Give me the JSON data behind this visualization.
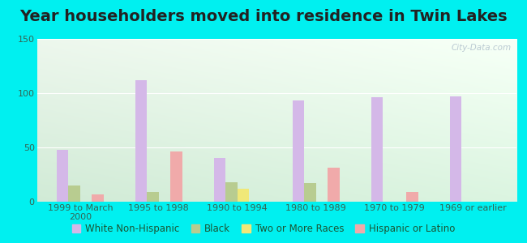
{
  "title": "Year householders moved into residence in Twin Lakes",
  "categories": [
    "1999 to March\n2000",
    "1995 to 1998",
    "1990 to 1994",
    "1980 to 1989",
    "1970 to 1979",
    "1969 or earlier"
  ],
  "series": {
    "White Non-Hispanic": [
      48,
      112,
      40,
      93,
      96,
      97
    ],
    "Black": [
      15,
      9,
      18,
      17,
      0,
      0
    ],
    "Two or More Races": [
      0,
      0,
      12,
      0,
      0,
      0
    ],
    "Hispanic or Latino": [
      7,
      46,
      0,
      31,
      9,
      0
    ]
  },
  "colors": {
    "White Non-Hispanic": "#d4b8e8",
    "Black": "#b8cc90",
    "Two or More Races": "#f0e878",
    "Hispanic or Latino": "#f0aaaa"
  },
  "ylim": [
    0,
    150
  ],
  "yticks": [
    0,
    50,
    100,
    150
  ],
  "background_color": "#00f0f0",
  "watermark": "City-Data.com",
  "title_fontsize": 14,
  "tick_fontsize": 8,
  "legend_fontsize": 8.5
}
